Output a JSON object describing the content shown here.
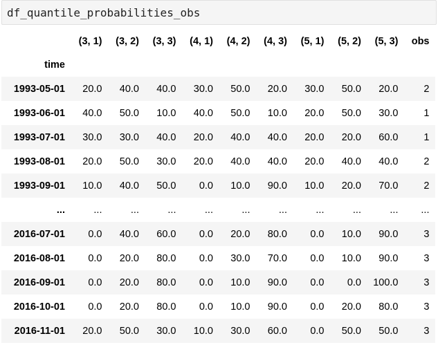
{
  "cell": {
    "code": "df_quantile_probabilities_obs"
  },
  "table": {
    "index_name": "time",
    "columns": [
      "(3, 1)",
      "(3, 2)",
      "(3, 3)",
      "(4, 1)",
      "(4, 2)",
      "(4, 3)",
      "(5, 1)",
      "(5, 2)",
      "(5, 3)",
      "obs"
    ],
    "rows": [
      {
        "index": "1993-05-01",
        "cells": [
          "20.0",
          "40.0",
          "40.0",
          "30.0",
          "50.0",
          "20.0",
          "30.0",
          "50.0",
          "20.0",
          "2"
        ]
      },
      {
        "index": "1993-06-01",
        "cells": [
          "40.0",
          "50.0",
          "10.0",
          "40.0",
          "50.0",
          "10.0",
          "20.0",
          "50.0",
          "30.0",
          "1"
        ]
      },
      {
        "index": "1993-07-01",
        "cells": [
          "30.0",
          "30.0",
          "40.0",
          "20.0",
          "40.0",
          "40.0",
          "20.0",
          "20.0",
          "60.0",
          "1"
        ]
      },
      {
        "index": "1993-08-01",
        "cells": [
          "20.0",
          "50.0",
          "30.0",
          "20.0",
          "40.0",
          "40.0",
          "20.0",
          "40.0",
          "40.0",
          "2"
        ]
      },
      {
        "index": "1993-09-01",
        "cells": [
          "10.0",
          "40.0",
          "50.0",
          "0.0",
          "10.0",
          "90.0",
          "10.0",
          "20.0",
          "70.0",
          "2"
        ]
      },
      {
        "index": "...",
        "cells": [
          "...",
          "...",
          "...",
          "...",
          "...",
          "...",
          "...",
          "...",
          "...",
          "..."
        ]
      },
      {
        "index": "2016-07-01",
        "cells": [
          "0.0",
          "40.0",
          "60.0",
          "0.0",
          "20.0",
          "80.0",
          "0.0",
          "10.0",
          "90.0",
          "3"
        ]
      },
      {
        "index": "2016-08-01",
        "cells": [
          "0.0",
          "20.0",
          "80.0",
          "0.0",
          "30.0",
          "70.0",
          "0.0",
          "10.0",
          "90.0",
          "3"
        ]
      },
      {
        "index": "2016-09-01",
        "cells": [
          "0.0",
          "20.0",
          "80.0",
          "0.0",
          "10.0",
          "90.0",
          "0.0",
          "0.0",
          "100.0",
          "3"
        ]
      },
      {
        "index": "2016-10-01",
        "cells": [
          "0.0",
          "20.0",
          "80.0",
          "0.0",
          "10.0",
          "90.0",
          "0.0",
          "20.0",
          "80.0",
          "3"
        ]
      },
      {
        "index": "2016-11-01",
        "cells": [
          "20.0",
          "50.0",
          "30.0",
          "10.0",
          "30.0",
          "60.0",
          "0.0",
          "50.0",
          "50.0",
          "3"
        ]
      }
    ]
  }
}
